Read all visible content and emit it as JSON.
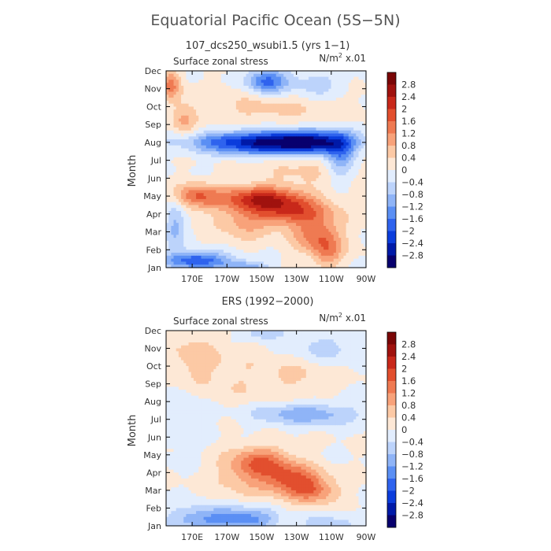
{
  "figure": {
    "title": "Equatorial Pacific Ocean (5S−5N)"
  },
  "colorbar": {
    "levels": [
      -3.2,
      -2.8,
      -2.4,
      -2.0,
      -1.6,
      -1.2,
      -0.8,
      -0.4,
      0,
      0.4,
      0.8,
      1.2,
      1.6,
      2.0,
      2.4,
      2.8,
      3.2
    ],
    "labels": [
      "2.8",
      "2.4",
      "2",
      "1.6",
      "1.2",
      "0.8",
      "0.4",
      "0",
      "−0.4",
      "−0.8",
      "−1.2",
      "−1.6",
      "−2",
      "−2.4",
      "−2.8"
    ],
    "colors": [
      "#08006e",
      "#001aa8",
      "#0b3ddc",
      "#2f63ee",
      "#5b8ff4",
      "#8fb4f7",
      "#bcd3fb",
      "#e2edfd",
      "#fde8d6",
      "#fcc9a5",
      "#f8a27a",
      "#ef7a52",
      "#e24f2e",
      "#c8281a",
      "#a0120e",
      "#7a0606"
    ]
  },
  "chart_data": [
    {
      "type": "heatmap",
      "title": "107_dcs250_wsubi1.5 (yrs 1−1)",
      "left_label": "Surface zonal stress",
      "units_prefix": "N/m",
      "units_sup": "2",
      "units_suffix": " x.01",
      "xlabel": "",
      "ylabel": "Month",
      "x_ticks": [
        "170E",
        "170W",
        "150W",
        "130W",
        "110W",
        "90W"
      ],
      "x_tick_values": [
        170,
        190,
        210,
        230,
        250,
        270
      ],
      "xlim": [
        155,
        270
      ],
      "y_ticks": [
        "Jan",
        "Feb",
        "Mar",
        "Apr",
        "May",
        "Jun",
        "Jul",
        "Aug",
        "Sep",
        "Oct",
        "Nov",
        "Dec"
      ],
      "ylim": [
        1,
        12
      ],
      "features": [
        {
          "x": 208,
          "y": 8.0,
          "sx": 26,
          "sy": 0.45,
          "amp": -2.6
        },
        {
          "x": 238,
          "y": 8.0,
          "sx": 16,
          "sy": 0.45,
          "amp": -2.0
        },
        {
          "x": 255,
          "y": 7.3,
          "sx": 6,
          "sy": 0.9,
          "amp": -1.4
        },
        {
          "x": 213,
          "y": 11.4,
          "sx": 8,
          "sy": 0.5,
          "amp": -1.8
        },
        {
          "x": 240,
          "y": 11.2,
          "sx": 12,
          "sy": 0.6,
          "amp": -0.7
        },
        {
          "x": 173,
          "y": 1.4,
          "sx": 13,
          "sy": 0.35,
          "amp": -2.0
        },
        {
          "x": 200,
          "y": 1.0,
          "sx": 9,
          "sy": 0.25,
          "amp": -1.2
        },
        {
          "x": 160,
          "y": 3.4,
          "sx": 4,
          "sy": 1.0,
          "amp": -0.9
        },
        {
          "x": 158,
          "y": 11.2,
          "sx": 4,
          "sy": 0.6,
          "amp": 1.3
        },
        {
          "x": 165,
          "y": 9.2,
          "sx": 5,
          "sy": 0.7,
          "amp": 0.8
        },
        {
          "x": 172,
          "y": 5.0,
          "sx": 9,
          "sy": 0.5,
          "amp": 1.4
        },
        {
          "x": 210,
          "y": 4.9,
          "sx": 18,
          "sy": 0.5,
          "amp": 2.0
        },
        {
          "x": 228,
          "y": 4.1,
          "sx": 16,
          "sy": 0.55,
          "amp": 1.6
        },
        {
          "x": 242,
          "y": 2.8,
          "sx": 10,
          "sy": 0.7,
          "amp": 1.4
        },
        {
          "x": 200,
          "y": 3.6,
          "sx": 12,
          "sy": 0.8,
          "amp": 0.8
        },
        {
          "x": 248,
          "y": 1.8,
          "sx": 6,
          "sy": 0.6,
          "amp": 1.0
        },
        {
          "x": 238,
          "y": 6.6,
          "sx": 20,
          "sy": 0.6,
          "amp": 0.5
        },
        {
          "x": 215,
          "y": 10.0,
          "sx": 30,
          "sy": 0.8,
          "amp": 0.5
        }
      ]
    },
    {
      "type": "heatmap",
      "title": "ERS (1992−2000)",
      "left_label": "Surface zonal stress",
      "units_prefix": "N/m",
      "units_sup": "2",
      "units_suffix": " x.01",
      "xlabel": "",
      "ylabel": "Month",
      "x_ticks": [
        "170E",
        "170W",
        "150W",
        "130W",
        "110W",
        "90W"
      ],
      "x_tick_values": [
        170,
        190,
        210,
        230,
        250,
        270
      ],
      "xlim": [
        155,
        270
      ],
      "y_ticks": [
        "Jan",
        "Feb",
        "Mar",
        "Apr",
        "May",
        "Jun",
        "Jul",
        "Aug",
        "Sep",
        "Oct",
        "Nov",
        "Dec"
      ],
      "ylim": [
        1,
        12
      ],
      "features": [
        {
          "x": 180,
          "y": 1.4,
          "sx": 16,
          "sy": 0.5,
          "amp": -1.3
        },
        {
          "x": 205,
          "y": 1.3,
          "sx": 10,
          "sy": 0.5,
          "amp": -1.0
        },
        {
          "x": 248,
          "y": 1.1,
          "sx": 12,
          "sy": 0.4,
          "amp": -0.6
        },
        {
          "x": 235,
          "y": 7.3,
          "sx": 22,
          "sy": 0.45,
          "amp": -1.1
        },
        {
          "x": 245,
          "y": 11.0,
          "sx": 14,
          "sy": 0.6,
          "amp": -0.6
        },
        {
          "x": 212,
          "y": 11.9,
          "sx": 8,
          "sy": 0.3,
          "amp": -0.9
        },
        {
          "x": 165,
          "y": 7.5,
          "sx": 10,
          "sy": 1.5,
          "amp": -0.4
        },
        {
          "x": 210,
          "y": 4.6,
          "sx": 12,
          "sy": 0.6,
          "amp": 1.3
        },
        {
          "x": 228,
          "y": 3.6,
          "sx": 12,
          "sy": 0.6,
          "amp": 1.6
        },
        {
          "x": 240,
          "y": 2.9,
          "sx": 10,
          "sy": 0.5,
          "amp": 1.1
        },
        {
          "x": 200,
          "y": 3.8,
          "sx": 14,
          "sy": 0.9,
          "amp": 0.6
        },
        {
          "x": 170,
          "y": 10.5,
          "sx": 12,
          "sy": 1.3,
          "amp": 0.5
        },
        {
          "x": 200,
          "y": 9.3,
          "sx": 25,
          "sy": 1.2,
          "amp": 0.35
        },
        {
          "x": 232,
          "y": 9.5,
          "sx": 12,
          "sy": 0.8,
          "amp": 0.3
        }
      ]
    }
  ]
}
